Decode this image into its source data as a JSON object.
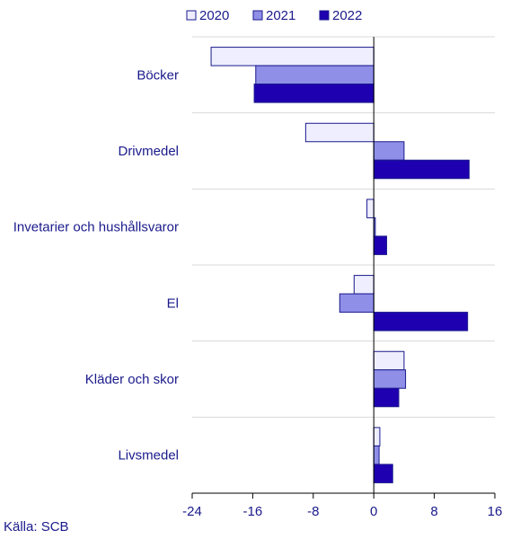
{
  "chart_data": {
    "type": "bar",
    "orientation": "horizontal",
    "categories": [
      "Böcker",
      "Drivmedel",
      "Invetarier och hushållsvaror",
      "El",
      "Kläder och skor",
      "Livsmedel"
    ],
    "series": [
      {
        "name": "2020",
        "color": "#eeeeff",
        "values": [
          -21.5,
          -9.0,
          -0.9,
          -2.6,
          4.0,
          0.8
        ]
      },
      {
        "name": "2021",
        "color": "#8f8fe8",
        "values": [
          -15.6,
          4.0,
          0.2,
          -4.5,
          4.2,
          0.7
        ]
      },
      {
        "name": "2022",
        "color": "#1f00b0",
        "values": [
          -15.8,
          12.6,
          1.7,
          12.4,
          3.3,
          2.5
        ]
      }
    ],
    "xlim": [
      -24,
      16
    ],
    "xticks": [
      "-24",
      "-16",
      "-8",
      "0",
      "8",
      "16"
    ],
    "grid": "horizontal separators between categories",
    "legend": "top-center"
  },
  "source": "Källa: SCB",
  "colors": {
    "text": "#1a1a8c",
    "outline": "#1a1a8c",
    "grid": "#d9d9d9"
  }
}
